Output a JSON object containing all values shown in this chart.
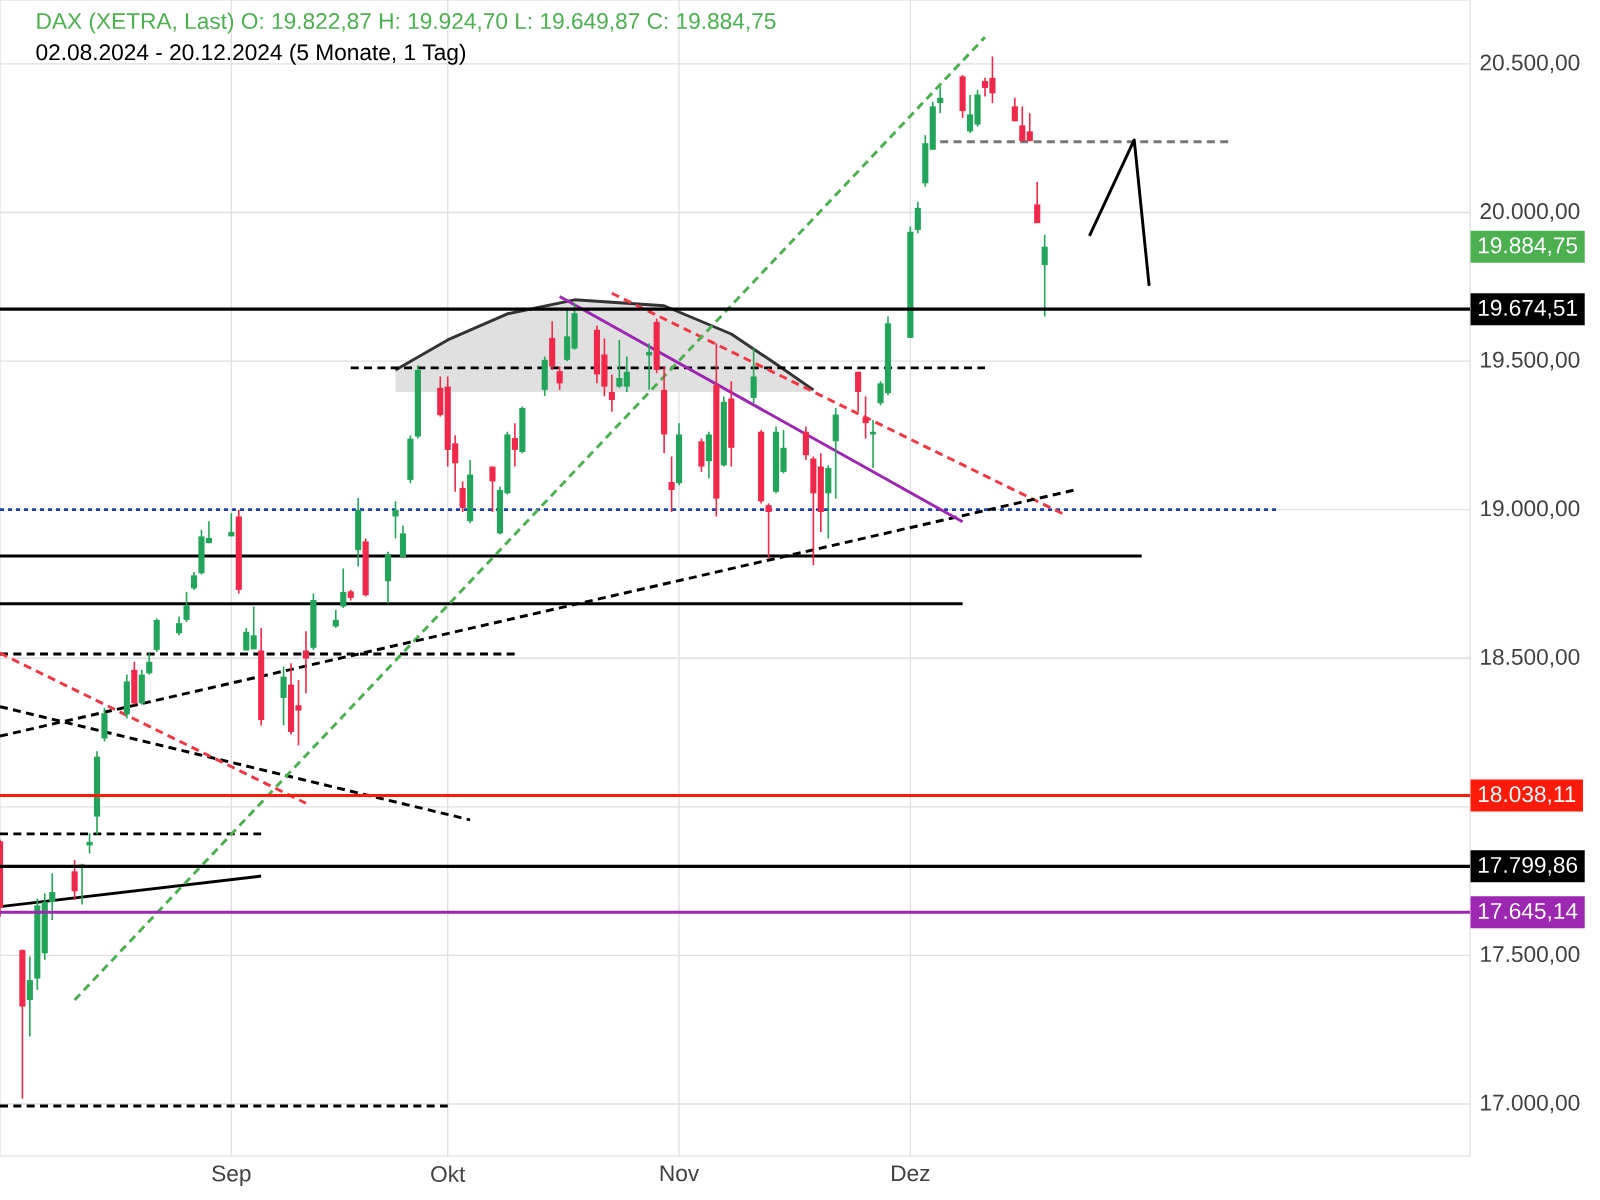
{
  "chart_data": {
    "type": "candlestick",
    "title": "DAX (XETRA, Last)  O: 19.822,87  H: 19.924,70  L: 19.649,87  C: 19.884,75",
    "subtitle": "02.08.2024 - 20.12.2024  (5 Monate, 1 Tag)",
    "x": [
      "2024-08-02",
      "2024-08-05",
      "2024-08-06",
      "2024-08-07",
      "2024-08-08",
      "2024-08-09",
      "2024-08-12",
      "2024-08-13",
      "2024-08-14",
      "2024-08-15",
      "2024-08-16",
      "2024-08-19",
      "2024-08-20",
      "2024-08-21",
      "2024-08-22",
      "2024-08-23",
      "2024-08-26",
      "2024-08-27",
      "2024-08-28",
      "2024-08-29",
      "2024-08-30",
      "2024-09-02",
      "2024-09-03",
      "2024-09-04",
      "2024-09-05",
      "2024-09-06",
      "2024-09-09",
      "2024-09-10",
      "2024-09-11",
      "2024-09-12",
      "2024-09-13",
      "2024-09-16",
      "2024-09-17",
      "2024-09-18",
      "2024-09-19",
      "2024-09-20",
      "2024-09-23",
      "2024-09-24",
      "2024-09-25",
      "2024-09-26",
      "2024-09-27",
      "2024-09-30",
      "2024-10-01",
      "2024-10-02",
      "2024-10-03",
      "2024-10-04",
      "2024-10-07",
      "2024-10-08",
      "2024-10-09",
      "2024-10-10",
      "2024-10-11",
      "2024-10-14",
      "2024-10-15",
      "2024-10-16",
      "2024-10-17",
      "2024-10-18",
      "2024-10-21",
      "2024-10-22",
      "2024-10-23",
      "2024-10-24",
      "2024-10-25",
      "2024-10-28",
      "2024-10-29",
      "2024-10-30",
      "2024-10-31",
      "2024-11-01",
      "2024-11-04",
      "2024-11-05",
      "2024-11-06",
      "2024-11-07",
      "2024-11-08",
      "2024-11-11",
      "2024-11-12",
      "2024-11-13",
      "2024-11-14",
      "2024-11-15",
      "2024-11-18",
      "2024-11-19",
      "2024-11-20",
      "2024-11-21",
      "2024-11-22",
      "2024-11-25",
      "2024-11-26",
      "2024-11-27",
      "2024-11-28",
      "2024-11-29",
      "2024-12-02",
      "2024-12-03",
      "2024-12-04",
      "2024-12-05",
      "2024-12-06",
      "2024-12-09",
      "2024-12-10",
      "2024-12-11",
      "2024-12-12",
      "2024-12-13",
      "2024-12-16",
      "2024-12-17",
      "2024-12-18",
      "2024-12-19",
      "2024-12-20"
    ],
    "ohlc": [
      [
        17884,
        17890,
        17630,
        17660
      ],
      [
        17518,
        17520,
        17018,
        17328
      ],
      [
        17350,
        17496,
        17227,
        17417
      ],
      [
        17422,
        17691,
        17384,
        17668
      ],
      [
        17507,
        17709,
        17485,
        17680
      ],
      [
        17680,
        17776,
        17619,
        17713
      ],
      [
        17783,
        17821,
        17687,
        17716
      ],
      [
        17794,
        17808,
        17671,
        17806
      ],
      [
        17870,
        17911,
        17843,
        17882
      ],
      [
        17967,
        18187,
        17907,
        18169
      ],
      [
        18230,
        18333,
        18220,
        18315
      ],
      [
        18311,
        18445,
        18297,
        18422
      ],
      [
        18461,
        18488,
        18344,
        18348
      ],
      [
        18348,
        18461,
        18344,
        18445
      ],
      [
        18449,
        18517,
        18445,
        18488
      ],
      [
        18528,
        18634,
        18521,
        18629
      ],
      [
        18584,
        18640,
        18577,
        18618
      ],
      [
        18629,
        18723,
        18622,
        18678
      ],
      [
        18735,
        18790,
        18730,
        18779
      ],
      [
        18786,
        18932,
        18782,
        18910
      ],
      [
        18887,
        18961,
        18887,
        18905
      ],
      [
        18910,
        18988,
        18910,
        18925
      ],
      [
        18977,
        18999,
        18718,
        18730
      ],
      [
        18526,
        18602,
        18526,
        18589
      ],
      [
        18530,
        18674,
        18530,
        18577
      ],
      [
        18526,
        18602,
        18274,
        18292
      ],
      [
        18366,
        18472,
        18274,
        18438
      ],
      [
        18411,
        18483,
        18243,
        18252
      ],
      [
        18342,
        18427,
        18207,
        18324
      ],
      [
        18526,
        18591,
        18382,
        18499
      ],
      [
        18535,
        18718,
        18528,
        18696
      ],
      [
        18607,
        18663,
        18602,
        18629
      ],
      [
        18674,
        18802,
        18669,
        18723
      ],
      [
        18725,
        18730,
        18694,
        18703
      ],
      [
        18864,
        19039,
        18809,
        18999
      ],
      [
        18893,
        18903,
        18708,
        18712
      ],
      [
        18759,
        18858,
        18685,
        18849
      ],
      [
        18977,
        19028,
        18903,
        18999
      ],
      [
        18840,
        18947,
        18840,
        18920
      ],
      [
        19100,
        19250,
        19089,
        19239
      ],
      [
        19246,
        19486,
        19239,
        19470
      ],
      [
        19410,
        19448,
        19313,
        19318
      ],
      [
        19414,
        19448,
        19145,
        19201
      ],
      [
        19223,
        19250,
        19060,
        19156
      ],
      [
        19073,
        19095,
        18992,
        19006
      ],
      [
        18961,
        19167,
        18954,
        19118
      ],
      [
        19145,
        19145,
        18992,
        19095
      ],
      [
        18920,
        19078,
        18916,
        19066
      ],
      [
        19055,
        19262,
        19051,
        19253
      ],
      [
        19241,
        19291,
        19145,
        19201
      ],
      [
        19194,
        19347,
        19190,
        19342
      ],
      [
        19403,
        19515,
        19383,
        19504
      ],
      [
        19578,
        19634,
        19470,
        19482
      ],
      [
        19466,
        19482,
        19403,
        19425
      ],
      [
        19504,
        19672,
        19499,
        19583
      ],
      [
        19542,
        19694,
        19538,
        19661
      ],
      [
        19605,
        19620,
        19425,
        19455
      ],
      [
        19522,
        19576,
        19381,
        19414
      ],
      [
        19396,
        19455,
        19329,
        19369
      ],
      [
        19414,
        19571,
        19410,
        19443
      ],
      [
        19414,
        19515,
        19396,
        19464
      ],
      [
        19519,
        19560,
        19403,
        19531
      ],
      [
        19632,
        19643,
        19459,
        19470
      ],
      [
        19403,
        19482,
        19190,
        19253
      ],
      [
        19093,
        19179,
        18992,
        19066
      ],
      [
        19089,
        19291,
        19082,
        19253
      ],
      [
        19230,
        19239,
        19127,
        19145
      ],
      [
        19163,
        19262,
        19105,
        19253
      ],
      [
        19419,
        19560,
        18977,
        19037
      ],
      [
        19149,
        19381,
        19145,
        19363
      ],
      [
        19374,
        19432,
        19145,
        19208
      ],
      [
        19376,
        19544,
        19358,
        19448
      ],
      [
        19262,
        19268,
        19021,
        19028
      ],
      [
        19015,
        19021,
        18838,
        18992
      ],
      [
        19060,
        19280,
        19055,
        19262
      ],
      [
        19127,
        19268,
        19122,
        19208
      ],
      [
        19262,
        19280,
        19167,
        19183
      ],
      [
        19172,
        19179,
        18813,
        19055
      ],
      [
        19145,
        19190,
        18925,
        18992
      ],
      [
        19055,
        19149,
        18903,
        19140
      ],
      [
        19230,
        19342,
        19037,
        19320
      ],
      [
        19464,
        19464,
        19329,
        19396
      ],
      [
        19309,
        19381,
        19239,
        19291
      ],
      [
        19253,
        19302,
        19140,
        19262
      ],
      [
        19358,
        19432,
        19351,
        19425
      ],
      [
        19392,
        19650,
        19385,
        19627
      ],
      [
        19578,
        19953,
        19578,
        19935
      ],
      [
        19941,
        20036,
        19930,
        20015
      ],
      [
        20098,
        20260,
        20087,
        20233
      ],
      [
        20211,
        20372,
        20211,
        20357
      ],
      [
        20368,
        20424,
        20334,
        20386
      ],
      [
        20458,
        20462,
        20318,
        20341
      ],
      [
        20273,
        20395,
        20267,
        20330
      ],
      [
        20296,
        20413,
        20289,
        20397
      ],
      [
        20442,
        20453,
        20390,
        20419
      ],
      [
        20453,
        20525,
        20368,
        20401
      ],
      [
        20357,
        20386,
        20307,
        20307
      ],
      [
        20293,
        20357,
        20240,
        20240
      ],
      [
        20273,
        20334,
        20240,
        20240
      ],
      [
        20027,
        20103,
        19964,
        19964
      ],
      [
        19822.87,
        19924.7,
        19649.87,
        19884.75
      ]
    ],
    "series": [
      {
        "type": "line",
        "color": "#333333",
        "line_style": "solid",
        "x": [
          "2024-09-24",
          "2024-10-01",
          "2024-10-09",
          "2024-10-18",
          "2024-10-30",
          "2024-11-08",
          "2024-11-14",
          "2024-11-19"
        ],
        "values": [
          19470,
          19571,
          19659,
          19706,
          19686,
          19591,
          19490,
          19403
        ],
        "lower": [
          19396,
          19396,
          19396,
          19396,
          19396,
          19396,
          19396,
          19396
        ],
        "upper": [
          19470,
          19571,
          19659,
          19706,
          19686,
          19591,
          19490,
          19403
        ]
      },
      {
        "type": "line",
        "color": "#000000",
        "line_style": "solid",
        "x": [
          "2024-08-02",
          "2025-01-02"
        ],
        "values": [
          18844,
          18844
        ]
      },
      {
        "type": "line",
        "color": "#000000",
        "line_style": "solid",
        "x": [
          "2024-08-02",
          "2024-12-09"
        ],
        "values": [
          18683,
          18683
        ]
      },
      {
        "type": "line",
        "color": "#000000",
        "line_style": "dashed",
        "x": [
          "2024-08-02",
          "2024-10-10"
        ],
        "values": [
          18514,
          18514
        ]
      },
      {
        "type": "line",
        "color": "#000000",
        "line_style": "dashed",
        "x": [
          "2024-08-02",
          "2024-09-06"
        ],
        "values": [
          17909,
          17909
        ]
      },
      {
        "type": "line",
        "color": "#000000",
        "line_style": "dashed",
        "x": [
          "2024-08-02",
          "2024-10-01"
        ],
        "values": [
          16993,
          16993
        ]
      },
      {
        "type": "line",
        "color": "#000000",
        "line_style": "dashed",
        "x": [
          "2024-09-18",
          "2024-12-12"
        ],
        "values": [
          19477,
          19477
        ]
      },
      {
        "type": "line",
        "color": "#787878",
        "line_style": "dashed",
        "x": [
          "2024-12-06",
          "2025-01-14"
        ],
        "values": [
          20238,
          20238
        ]
      },
      {
        "type": "line",
        "color": "#1e40af",
        "line_style": "dotted",
        "x": [
          "2024-08-02",
          "2025-01-20"
        ],
        "values": [
          19000,
          19000
        ]
      },
      {
        "type": "line",
        "color": "#000000",
        "line_style": "solid",
        "x": [
          "2024-08-02",
          "2024-09-06"
        ],
        "values": [
          17664,
          17767
        ]
      },
      {
        "type": "line",
        "color": "#000000",
        "line_style": "dashed",
        "x": [
          "2024-08-02",
          "2024-10-04"
        ],
        "values": [
          18337,
          17956
        ]
      },
      {
        "type": "line",
        "color": "#f23645",
        "line_style": "dashed",
        "x": [
          "2024-08-02",
          "2024-09-12"
        ],
        "values": [
          18517,
          18012
        ]
      },
      {
        "type": "line",
        "color": "#f23645",
        "line_style": "dashed",
        "x": [
          "2024-10-23",
          "2024-12-23"
        ],
        "values": [
          19728,
          18979
        ]
      },
      {
        "type": "line",
        "color": "#4caf50",
        "line_style": "dashed",
        "x": [
          "2024-08-12",
          "2024-12-12"
        ],
        "values": [
          17350,
          20590
        ]
      },
      {
        "type": "line",
        "color": "#000000",
        "line_style": "dashed",
        "x": [
          "2024-08-02",
          "2024-12-24"
        ],
        "values": [
          18238,
          19066
        ]
      },
      {
        "type": "line",
        "color": "#9c27b0",
        "line_style": "solid",
        "x": [
          "2024-10-16",
          "2024-12-09"
        ],
        "values": [
          19717,
          18959
        ]
      },
      {
        "type": "line",
        "color": "#000000",
        "line_style": "solid",
        "x": [
          "2024-12-26",
          "2025-01-01",
          "2025-01-03"
        ],
        "values": [
          19921,
          20244,
          19753
        ]
      }
    ],
    "ref_lines": [
      {
        "axis": "y",
        "value": 19674.51,
        "label": "19.674,51",
        "color": "#000000"
      },
      {
        "axis": "y",
        "value": 18038.11,
        "label": "18.038,11",
        "color": "#ff1a0a"
      },
      {
        "axis": "y",
        "value": 17799.86,
        "label": "17.799,86",
        "color": "#000000"
      },
      {
        "axis": "y",
        "value": 17645.14,
        "label": "17.645,14",
        "color": "#9c27b0"
      }
    ],
    "annotations": [
      "19.884,75"
    ],
    "xlim": [
      "2024-08-02",
      "2025-02-15"
    ],
    "xticks": [
      {
        "value": "2024-09-02",
        "label": "Sep"
      },
      {
        "value": "2024-10-01",
        "label": "Okt"
      },
      {
        "value": "2024-11-01",
        "label": "Nov"
      },
      {
        "value": "2024-12-02",
        "label": "Dez"
      }
    ],
    "ylim": [
      16825,
      20715
    ],
    "yticks": [
      {
        "value": 17000,
        "label": "17.000,00"
      },
      {
        "value": 17500,
        "label": "17.500,00"
      },
      {
        "value": 18000,
        "label": null
      },
      {
        "value": 18500,
        "label": "18.500,00"
      },
      {
        "value": 19000,
        "label": "19.000,00"
      },
      {
        "value": 19500,
        "label": "19.500,00"
      },
      {
        "value": 20000,
        "label": "20.000,00"
      },
      {
        "value": 20500,
        "label": "20.500,00"
      }
    ],
    "grid": true
  }
}
